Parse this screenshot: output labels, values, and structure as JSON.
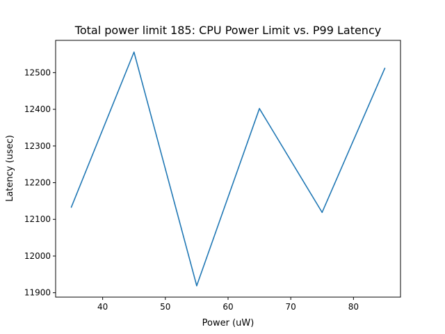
{
  "chart_data": {
    "type": "line",
    "title": "Total power limit 185: CPU Power Limit vs. P99 Latency",
    "xlabel": "Power (uW)",
    "ylabel": "Latency (usec)",
    "xlim": [
      32.5,
      87.5
    ],
    "ylim": [
      11888,
      12588
    ],
    "xticks": [
      40,
      50,
      60,
      70,
      80
    ],
    "yticks": [
      11900,
      12000,
      12100,
      12200,
      12300,
      12400,
      12500
    ],
    "grid": false,
    "series": [
      {
        "color": "#1f77b4",
        "x": [
          35,
          45,
          55,
          65,
          75,
          85
        ],
        "y": [
          12133,
          12556,
          11919,
          12402,
          12119,
          12512
        ]
      }
    ]
  }
}
